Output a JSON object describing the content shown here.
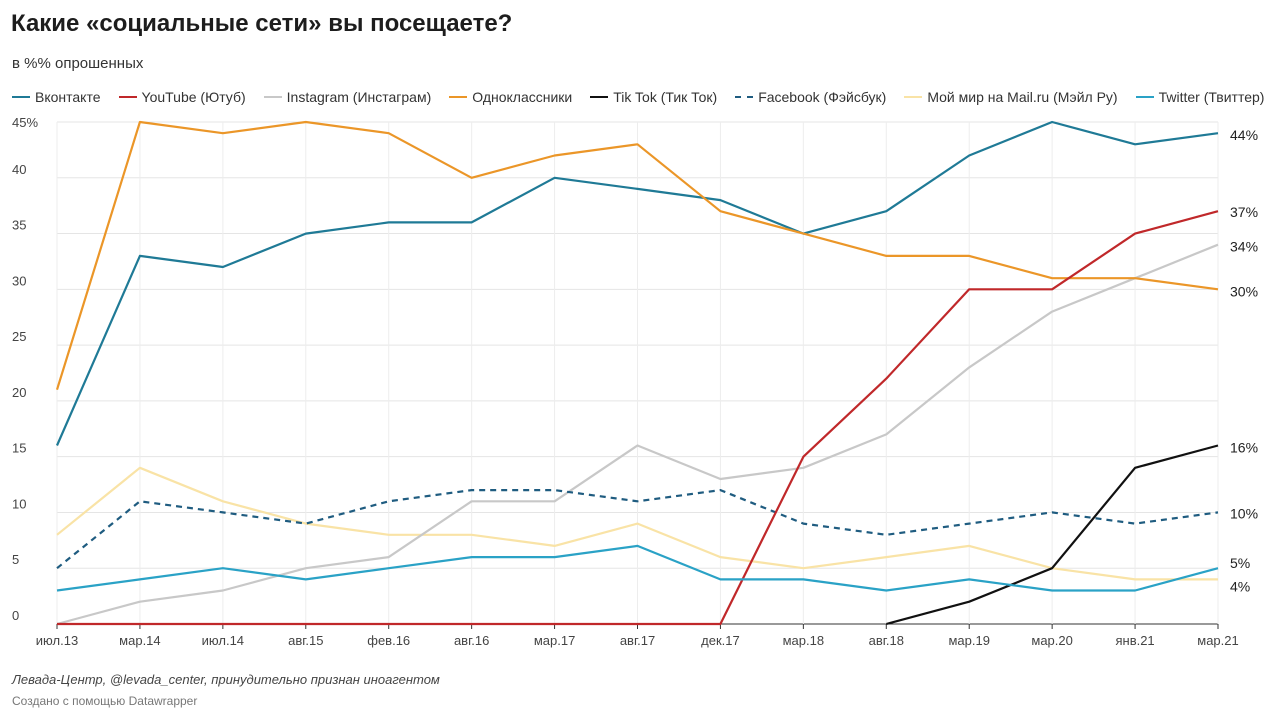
{
  "chart_data": {
    "type": "line",
    "title": "Какие «социальные сети» вы посещаете?",
    "subtitle": "в %% опрошенных",
    "xlabel": "",
    "ylabel": "",
    "x_ticks": [
      "июл.13",
      "мар.14",
      "июл.14",
      "авг.15",
      "фев.16",
      "авг.16",
      "мар.17",
      "авг.17",
      "дек.17",
      "мар.18",
      "авг.18",
      "мар.19",
      "мар.20",
      "янв.21",
      "мар.21"
    ],
    "y_ticks": [
      "0",
      "5",
      "10",
      "15",
      "20",
      "25",
      "30",
      "35",
      "40",
      "45%"
    ],
    "ylim": [
      0,
      45
    ],
    "grid": "on",
    "legend_position": "top",
    "series": [
      {
        "name": "Вконтакте",
        "color": "#1f7a96",
        "dash": "solid",
        "values": [
          16,
          33,
          32,
          35,
          36,
          36,
          40,
          39,
          38,
          35,
          37,
          42,
          45,
          43,
          44
        ],
        "end_label": "44%"
      },
      {
        "name": "YouTube (Ютуб)",
        "color": "#c0282a",
        "dash": "solid",
        "values": [
          0,
          0,
          0,
          0,
          0,
          0,
          0,
          0,
          0,
          15,
          22,
          30,
          30,
          35,
          37
        ],
        "end_label": "37%"
      },
      {
        "name": "Instagram (Инстаграм)",
        "color": "#c8c8c8",
        "dash": "solid",
        "values": [
          0,
          2,
          3,
          5,
          6,
          11,
          11,
          16,
          13,
          14,
          17,
          23,
          28,
          31,
          34
        ],
        "end_label": "34%"
      },
      {
        "name": "Одноклассники",
        "color": "#eb9628",
        "dash": "solid",
        "values": [
          21,
          45,
          44,
          45,
          44,
          40,
          42,
          43,
          37,
          35,
          33,
          33,
          31,
          31,
          30
        ],
        "end_label": "30%"
      },
      {
        "name": "Tik Tok (Тик Ток)",
        "color": "#111111",
        "dash": "solid",
        "values": [
          null,
          null,
          null,
          null,
          null,
          null,
          null,
          null,
          null,
          null,
          0,
          2,
          5,
          14,
          16
        ],
        "end_label": "16%"
      },
      {
        "name": "Facebook (Фэйсбук)",
        "color": "#1f5c80",
        "dash": "dashed",
        "values": [
          5,
          11,
          10,
          9,
          11,
          12,
          12,
          11,
          12,
          9,
          8,
          9,
          10,
          9,
          10
        ],
        "end_label": "10%"
      },
      {
        "name": "Мой мир на Mail.ru (Мэйл Ру)",
        "color": "#f9e3a6",
        "dash": "solid",
        "values": [
          8,
          14,
          11,
          9,
          8,
          8,
          7,
          9,
          6,
          5,
          6,
          7,
          5,
          4,
          4
        ],
        "end_label": "4%"
      },
      {
        "name": "Twitter (Твиттер)",
        "color": "#2aa2c6",
        "dash": "solid",
        "values": [
          3,
          4,
          5,
          4,
          5,
          6,
          6,
          7,
          4,
          4,
          3,
          4,
          3,
          3,
          5
        ],
        "end_label": "5%"
      }
    ]
  },
  "footer": {
    "source": "Левада-Центр, @levada_center, принудительно признан иноагентом",
    "credit": "Создано с помощью Datawrapper"
  }
}
